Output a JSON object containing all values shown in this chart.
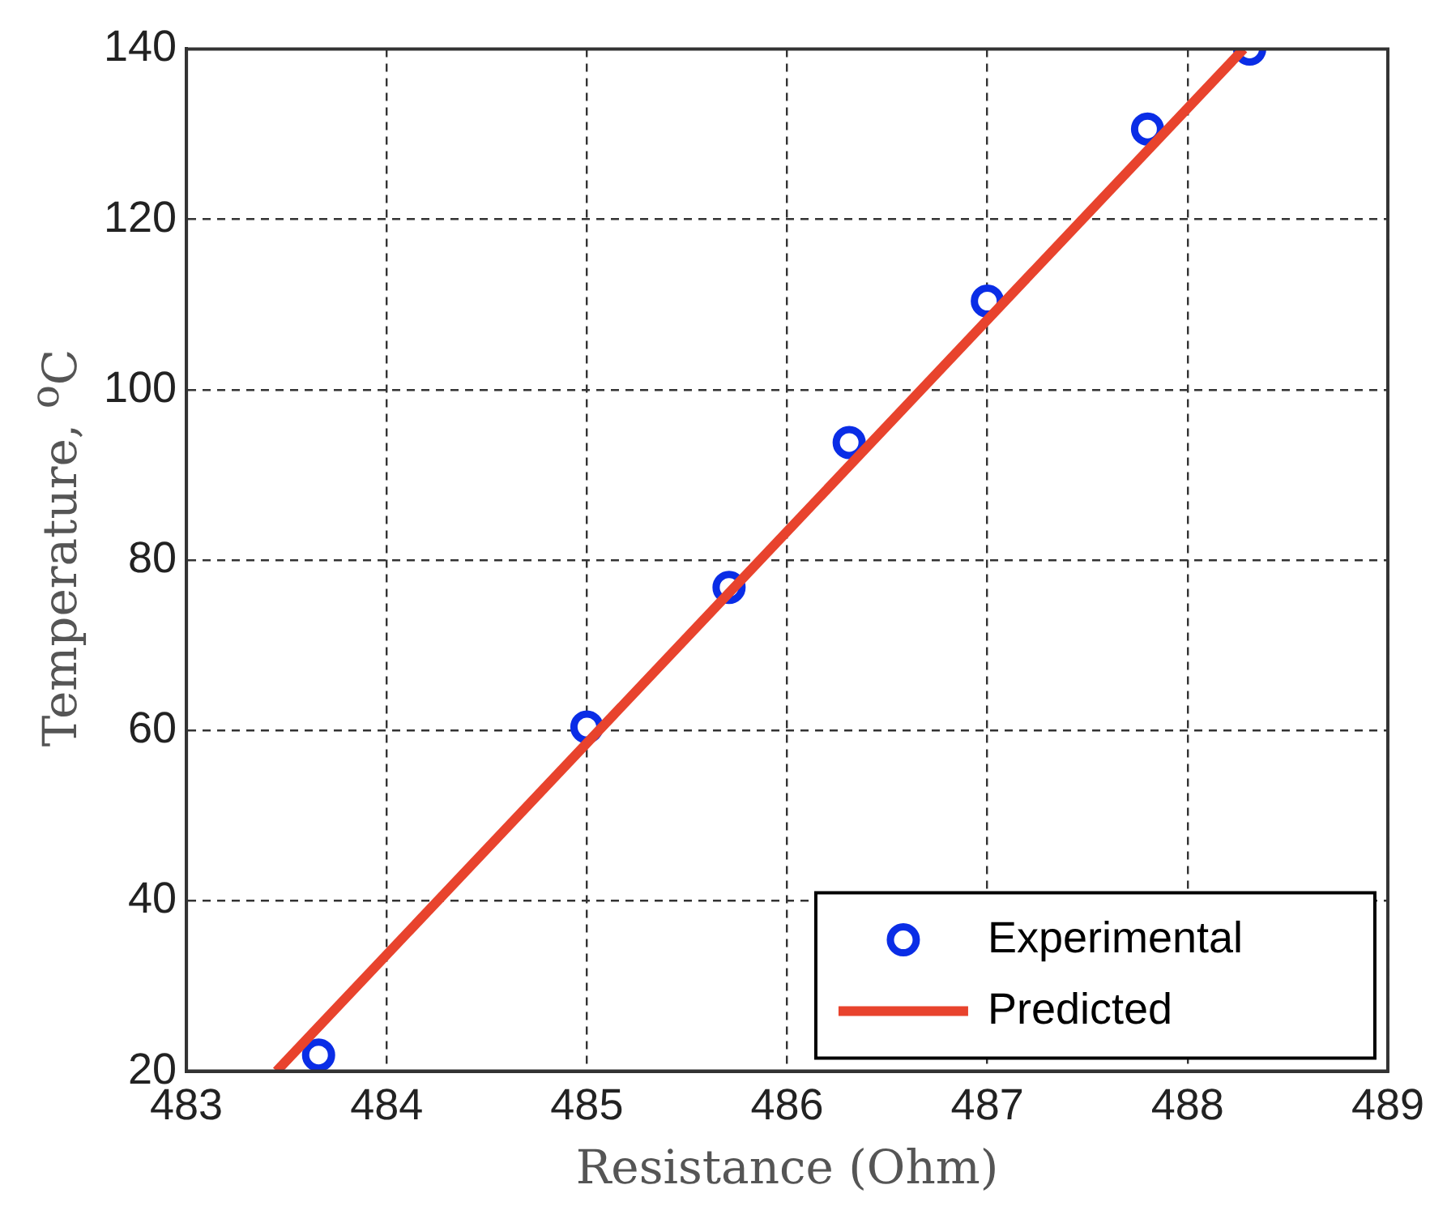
{
  "chart_data": {
    "type": "scatter",
    "xlabel": "Resistance (Ohm)",
    "ylabel": "Temperature, $^{o}$C",
    "xlim": [
      483,
      489
    ],
    "xticks": [
      483,
      484,
      485,
      486,
      487,
      488,
      489
    ],
    "ylim": [
      20,
      140
    ],
    "yticks": [
      20,
      40,
      60,
      80,
      100,
      120,
      140
    ],
    "grid": true,
    "legend": "bottom right",
    "series": [
      {
        "name": "Experimental",
        "color": "#0a2de6",
        "marker": "circle",
        "x": [
          483.66,
          485,
          485.71,
          486.31,
          487,
          487.8,
          488.31
        ],
        "values": [
          21.9,
          60.4,
          76.8,
          93.8,
          110.4,
          130.6,
          140
        ]
      },
      {
        "name": "Predicted",
        "type": "line",
        "color": "#e8432d",
        "marker": "none",
        "line_style": "solid",
        "x": [
          483.45,
          488.28
        ],
        "values": [
          20,
          140
        ]
      }
    ]
  }
}
